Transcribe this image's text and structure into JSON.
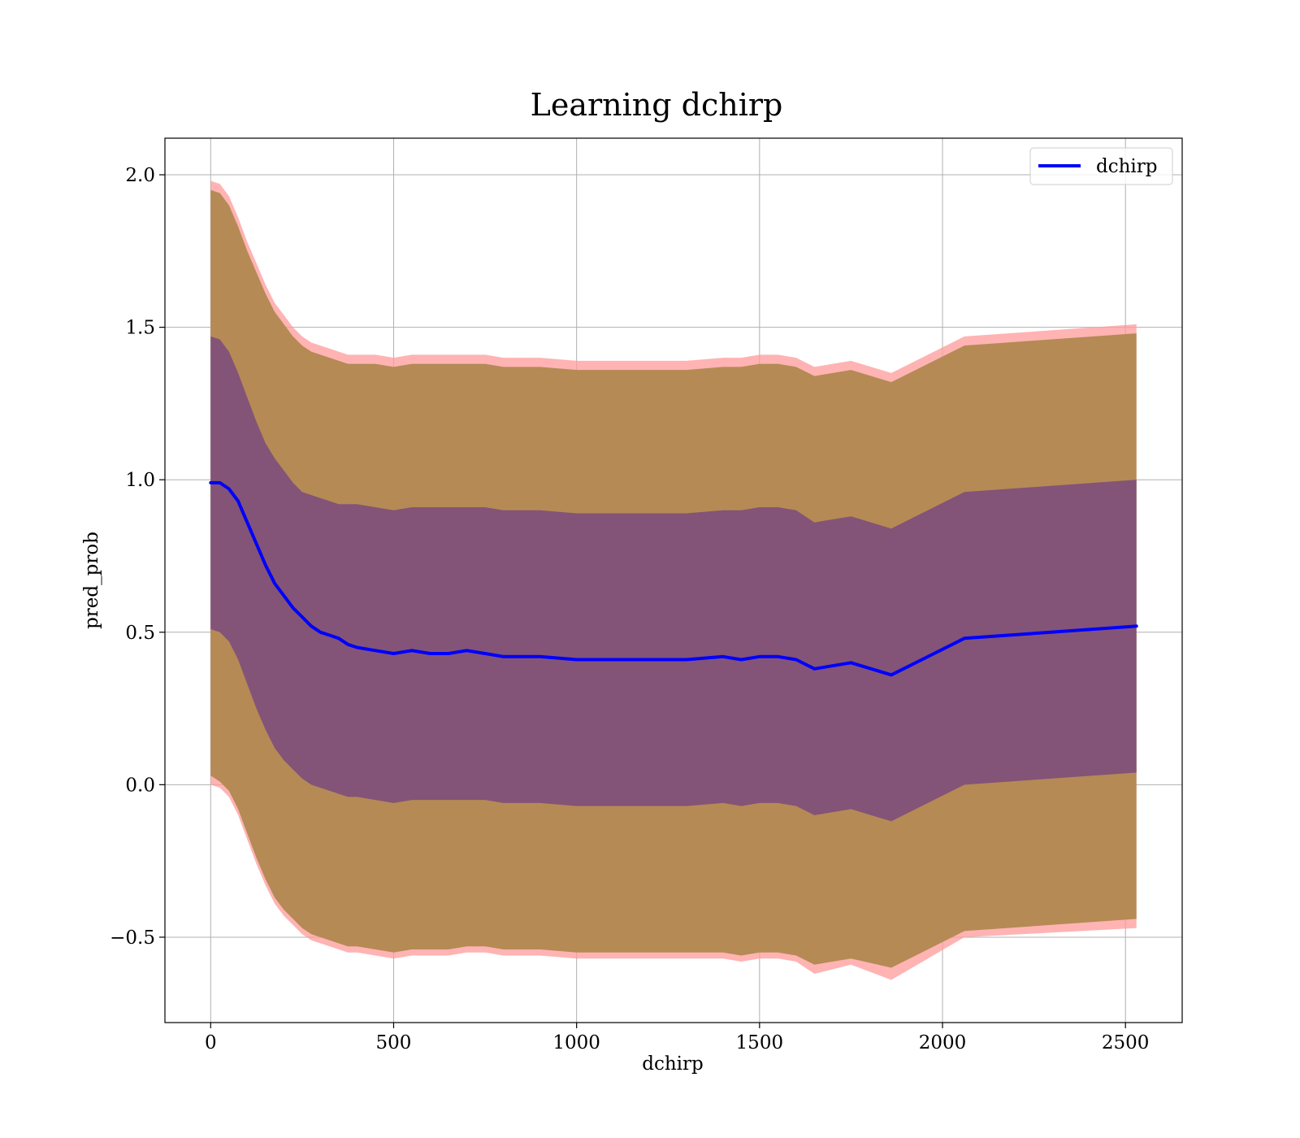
{
  "chart_data": {
    "type": "line",
    "title": "Learning dchirp",
    "xlabel": "dchirp",
    "ylabel": "pred_prob",
    "xlim": [
      -125,
      2655
    ],
    "ylim": [
      -0.78,
      2.12
    ],
    "x_ticks": [
      0,
      500,
      1000,
      1500,
      2000,
      2500
    ],
    "x_tick_labels": [
      "0",
      "500",
      "1000",
      "1500",
      "2000",
      "2500"
    ],
    "y_ticks": [
      -0.5,
      0.0,
      0.5,
      1.0,
      1.5,
      2.0
    ],
    "y_tick_labels": [
      "−0.5",
      "0.0",
      "0.5",
      "1.0",
      "1.5",
      "2.0"
    ],
    "grid": true,
    "legend": {
      "position": "top-right",
      "entries": [
        "dchirp"
      ]
    },
    "colors": {
      "line": "#0000ff",
      "outer_band": "#ff9999",
      "middle_band": "#b58a55",
      "inner_band": "#7a4a7e"
    },
    "x": [
      0,
      25,
      50,
      75,
      100,
      125,
      150,
      175,
      200,
      225,
      250,
      275,
      300,
      325,
      350,
      375,
      400,
      450,
      500,
      550,
      600,
      650,
      700,
      750,
      800,
      900,
      1000,
      1100,
      1200,
      1300,
      1400,
      1450,
      1500,
      1550,
      1600,
      1650,
      1750,
      1860,
      2060,
      2530
    ],
    "series": [
      {
        "name": "dchirp",
        "values": [
          0.99,
          0.99,
          0.97,
          0.93,
          0.86,
          0.79,
          0.72,
          0.66,
          0.62,
          0.58,
          0.55,
          0.52,
          0.5,
          0.49,
          0.48,
          0.46,
          0.45,
          0.44,
          0.43,
          0.44,
          0.43,
          0.43,
          0.44,
          0.43,
          0.42,
          0.42,
          0.41,
          0.41,
          0.41,
          0.41,
          0.42,
          0.41,
          0.42,
          0.42,
          0.41,
          0.38,
          0.4,
          0.36,
          0.48,
          0.52
        ]
      }
    ],
    "bands": [
      {
        "lower": [
          0.0,
          -0.01,
          -0.04,
          -0.1,
          -0.18,
          -0.26,
          -0.33,
          -0.39,
          -0.43,
          -0.46,
          -0.49,
          -0.51,
          -0.52,
          -0.53,
          -0.54,
          -0.55,
          -0.55,
          -0.56,
          -0.57,
          -0.56,
          -0.56,
          -0.56,
          -0.55,
          -0.55,
          -0.56,
          -0.56,
          -0.57,
          -0.57,
          -0.57,
          -0.57,
          -0.57,
          -0.58,
          -0.57,
          -0.57,
          -0.58,
          -0.62,
          -0.59,
          -0.64,
          -0.5,
          -0.47
        ],
        "upper": [
          1.98,
          1.97,
          1.93,
          1.86,
          1.78,
          1.71,
          1.64,
          1.58,
          1.54,
          1.5,
          1.47,
          1.45,
          1.44,
          1.43,
          1.42,
          1.41,
          1.41,
          1.41,
          1.4,
          1.41,
          1.41,
          1.41,
          1.41,
          1.41,
          1.4,
          1.4,
          1.39,
          1.39,
          1.39,
          1.39,
          1.4,
          1.4,
          1.41,
          1.41,
          1.4,
          1.37,
          1.39,
          1.35,
          1.47,
          1.51
        ]
      },
      {
        "lower": [
          0.03,
          0.01,
          -0.02,
          -0.08,
          -0.16,
          -0.24,
          -0.31,
          -0.37,
          -0.41,
          -0.44,
          -0.47,
          -0.49,
          -0.5,
          -0.51,
          -0.52,
          -0.53,
          -0.53,
          -0.54,
          -0.55,
          -0.54,
          -0.54,
          -0.54,
          -0.53,
          -0.53,
          -0.54,
          -0.54,
          -0.55,
          -0.55,
          -0.55,
          -0.55,
          -0.55,
          -0.56,
          -0.55,
          -0.55,
          -0.56,
          -0.59,
          -0.57,
          -0.6,
          -0.48,
          -0.44
        ],
        "upper": [
          1.95,
          1.94,
          1.9,
          1.83,
          1.75,
          1.68,
          1.61,
          1.55,
          1.51,
          1.47,
          1.44,
          1.42,
          1.41,
          1.4,
          1.39,
          1.38,
          1.38,
          1.38,
          1.37,
          1.38,
          1.38,
          1.38,
          1.38,
          1.38,
          1.37,
          1.37,
          1.36,
          1.36,
          1.36,
          1.36,
          1.37,
          1.37,
          1.38,
          1.38,
          1.37,
          1.34,
          1.36,
          1.32,
          1.44,
          1.48
        ]
      },
      {
        "lower": [
          0.51,
          0.5,
          0.47,
          0.41,
          0.33,
          0.25,
          0.18,
          0.12,
          0.08,
          0.05,
          0.02,
          0.0,
          -0.01,
          -0.02,
          -0.03,
          -0.04,
          -0.04,
          -0.05,
          -0.06,
          -0.05,
          -0.05,
          -0.05,
          -0.05,
          -0.05,
          -0.06,
          -0.06,
          -0.07,
          -0.07,
          -0.07,
          -0.07,
          -0.06,
          -0.07,
          -0.06,
          -0.06,
          -0.07,
          -0.1,
          -0.08,
          -0.12,
          0.0,
          0.04
        ],
        "upper": [
          1.47,
          1.46,
          1.42,
          1.35,
          1.27,
          1.19,
          1.12,
          1.07,
          1.03,
          0.99,
          0.96,
          0.95,
          0.94,
          0.93,
          0.92,
          0.92,
          0.92,
          0.91,
          0.9,
          0.91,
          0.91,
          0.91,
          0.91,
          0.91,
          0.9,
          0.9,
          0.89,
          0.89,
          0.89,
          0.89,
          0.9,
          0.9,
          0.91,
          0.91,
          0.9,
          0.86,
          0.88,
          0.84,
          0.96,
          1.0
        ]
      }
    ]
  }
}
